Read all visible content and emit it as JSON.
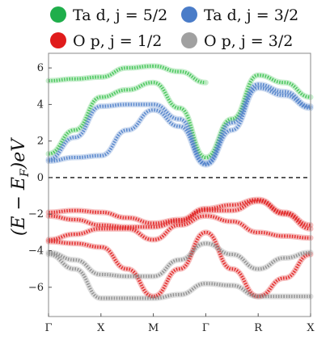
{
  "chart_data": {
    "type": "line",
    "ylabel": "(E − E_F)eV",
    "ylabel_display": "(E − E",
    "ylabel_sub": "F",
    "ylabel_tail": ")eV",
    "ylim": [
      -7.6,
      6.8
    ],
    "yticks": [
      {
        "value": 6,
        "label": "6"
      },
      {
        "value": 4,
        "label": "4"
      },
      {
        "value": 2,
        "label": "2"
      },
      {
        "value": 0,
        "label": "0"
      },
      {
        "value": -2,
        "label": "−2"
      },
      {
        "value": -4,
        "label": "−4"
      },
      {
        "value": -6,
        "label": "−6"
      }
    ],
    "kpoints": [
      {
        "label": "Γ",
        "pos": 0
      },
      {
        "label": "X",
        "pos": 1
      },
      {
        "label": "M",
        "pos": 2
      },
      {
        "label": "Γ",
        "pos": 3
      },
      {
        "label": "R",
        "pos": 4
      },
      {
        "label": "X",
        "pos": 5
      }
    ],
    "fermi_level": 0,
    "legend": [
      {
        "text": "Ta d, j = 5/2",
        "color": "#1fae4b"
      },
      {
        "text": "Ta d, j = 3/2",
        "color": "#4a7cc8"
      },
      {
        "text": "O p, j = 1/2",
        "color": "#e01b1b"
      },
      {
        "text": "O p, j = 3/2",
        "color": "#a0a0a0"
      }
    ],
    "series": [
      {
        "projection": "Ta d, j = 5/2",
        "color": "#39c24e",
        "x": [
          0,
          0.5,
          1,
          1.5,
          2,
          2.5,
          3
        ],
        "values": [
          5.3,
          5.4,
          5.5,
          6.0,
          6.1,
          5.8,
          5.2
        ]
      },
      {
        "projection": "Ta d, j = 5/2",
        "color": "#39c24e",
        "x": [
          0,
          0.5,
          1,
          1.5,
          2,
          2.5,
          3,
          3.5,
          4,
          4.5,
          5
        ],
        "values": [
          1.3,
          2.6,
          4.4,
          4.8,
          5.2,
          3.8,
          1.1,
          3.2,
          5.6,
          5.2,
          4.4
        ]
      },
      {
        "projection": "Ta d, j = 3/2",
        "color": "#4a7cc8",
        "x": [
          0,
          0.5,
          1,
          1.5,
          2,
          2.5,
          3,
          3.5,
          4,
          4.5,
          5
        ],
        "values": [
          1.0,
          2.2,
          3.9,
          4.0,
          4.0,
          3.2,
          0.8,
          3.0,
          5.1,
          4.7,
          3.9
        ]
      },
      {
        "projection": "Ta d, j = 3/2",
        "color": "#4a7cc8",
        "x": [
          0,
          0.5,
          1,
          1.5,
          2,
          2.5,
          3,
          3.5,
          4,
          4.5,
          5
        ],
        "values": [
          0.9,
          1.1,
          1.2,
          2.6,
          3.7,
          2.8,
          0.7,
          2.6,
          4.9,
          4.5,
          3.8
        ]
      },
      {
        "projection": "O p, j = 1/2",
        "color": "#e01b1b",
        "x": [
          0,
          0.5,
          1,
          1.5,
          2,
          2.5,
          3,
          3.5,
          4,
          4.5,
          5
        ],
        "values": [
          -1.9,
          -1.8,
          -1.9,
          -2.2,
          -2.5,
          -2.3,
          -1.7,
          -1.5,
          -1.2,
          -1.9,
          -2.6
        ]
      },
      {
        "projection": "O p, j = 1/2",
        "color": "#e01b1b",
        "x": [
          0,
          0.5,
          1,
          1.5,
          2,
          2.5,
          3,
          3.5,
          4,
          4.5,
          5
        ],
        "values": [
          -2.1,
          -2.3,
          -2.6,
          -2.7,
          -2.7,
          -2.4,
          -1.8,
          -1.8,
          -1.3,
          -2.0,
          -2.8
        ]
      },
      {
        "projection": "O p, j = 1/2",
        "color": "#e01b1b",
        "x": [
          0,
          0.5,
          1,
          1.5,
          2,
          2.5,
          3,
          3.5,
          4,
          4.5,
          5
        ],
        "values": [
          -3.4,
          -3.1,
          -2.8,
          -2.8,
          -3.4,
          -2.6,
          -2.1,
          -2.4,
          -3.0,
          -3.2,
          -3.3
        ]
      },
      {
        "projection": "O p, j = 1/2",
        "color": "#e01b1b",
        "x": [
          0,
          0.5,
          1,
          1.5,
          2,
          2.5,
          3,
          3.5,
          4,
          4.5,
          5
        ],
        "values": [
          -3.5,
          -3.6,
          -3.8,
          -5.0,
          -6.5,
          -5.0,
          -3.0,
          -5.0,
          -6.5,
          -5.5,
          -4.2
        ]
      },
      {
        "projection": "O p, j = 3/2",
        "color": "#8a8a8a",
        "x": [
          0,
          0.5,
          1,
          1.5,
          2,
          2.5,
          3,
          3.5,
          4,
          4.5,
          5
        ],
        "values": [
          -4.1,
          -4.5,
          -5.3,
          -5.4,
          -5.4,
          -4.5,
          -3.6,
          -4.2,
          -5.0,
          -4.4,
          -4.1
        ]
      },
      {
        "projection": "O p, j = 3/2",
        "color": "#8a8a8a",
        "x": [
          0,
          0.5,
          1,
          1.5,
          2,
          2.5,
          3,
          3.5,
          4,
          4.5,
          5
        ],
        "values": [
          -4.2,
          -5.0,
          -6.6,
          -6.6,
          -6.6,
          -6.4,
          -5.8,
          -5.9,
          -6.5,
          -6.5,
          -6.5
        ]
      }
    ]
  }
}
